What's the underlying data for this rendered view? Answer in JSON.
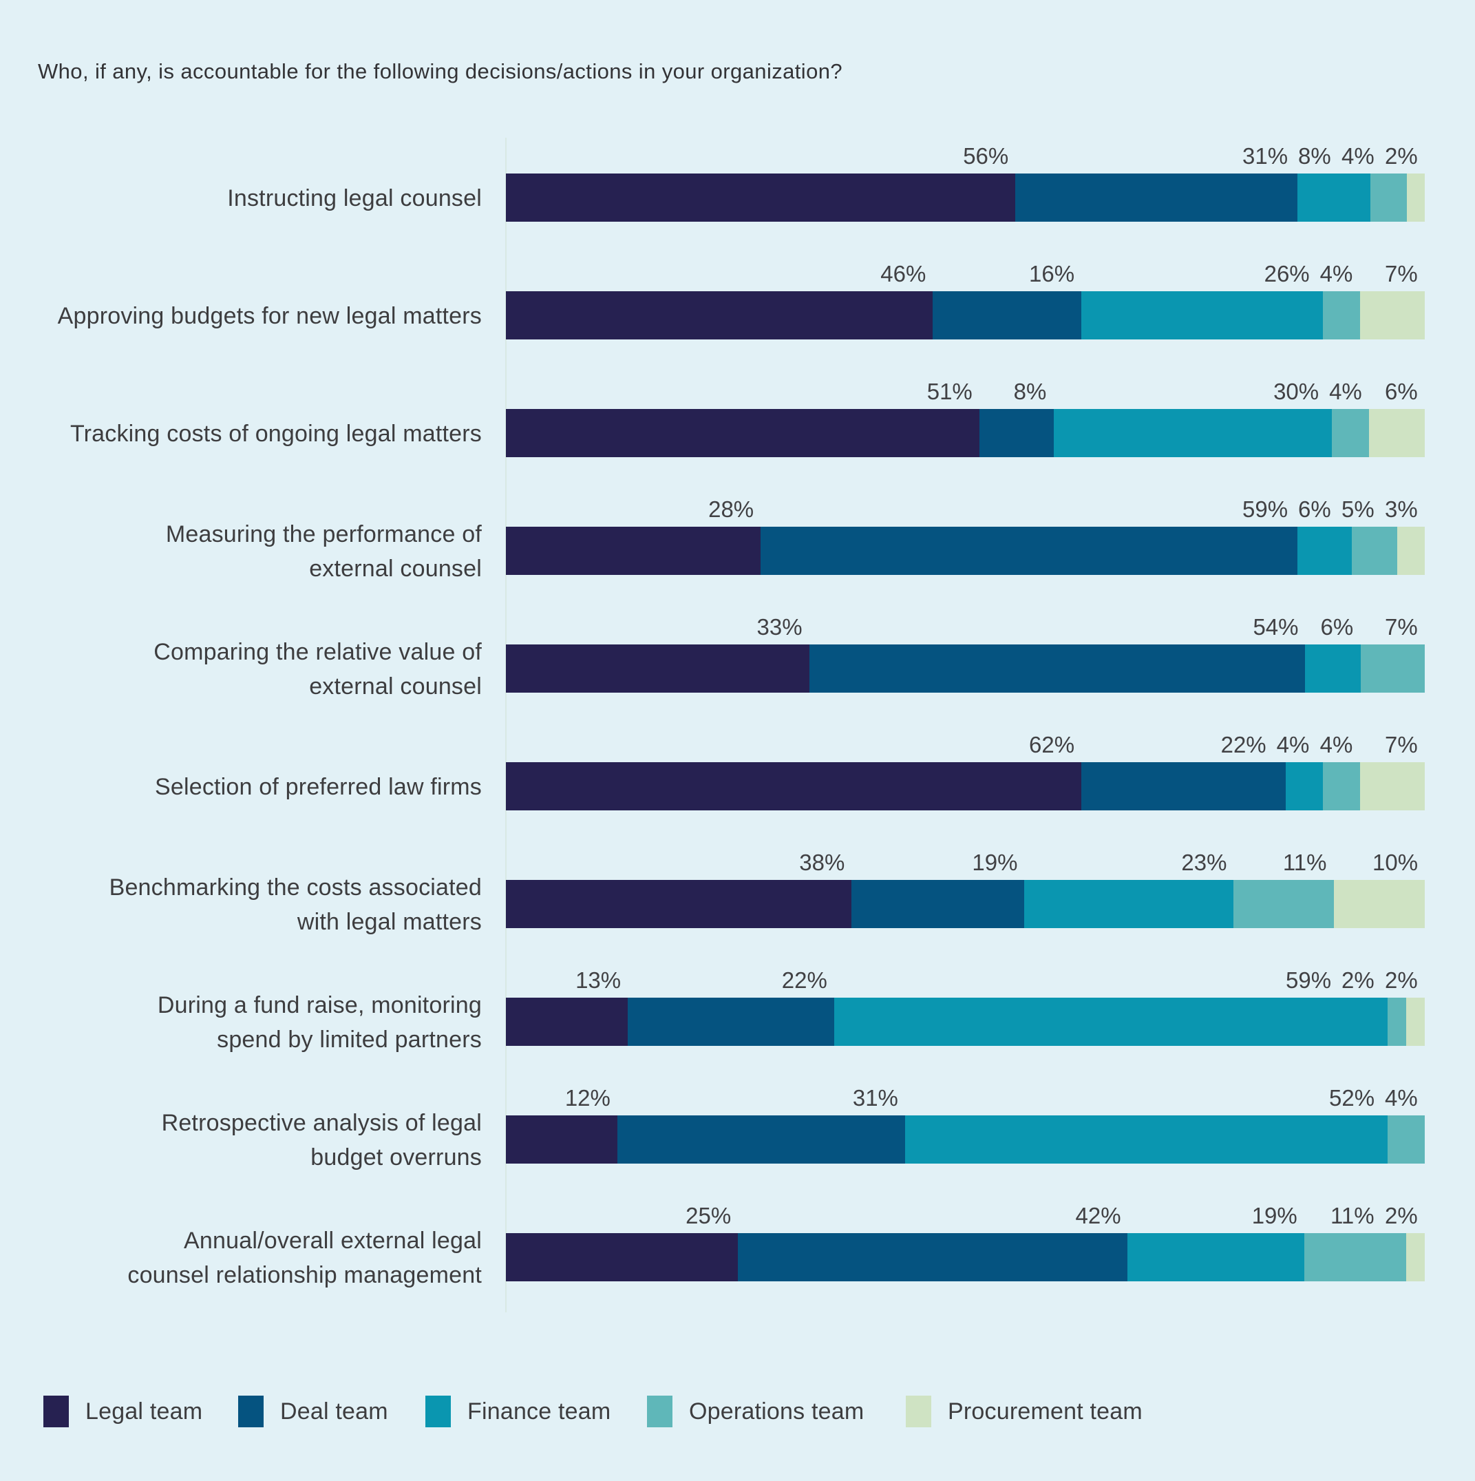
{
  "title": "Who, if any, is accountable for the following decisions/actions in your organization?",
  "chart_data": {
    "type": "bar",
    "stacked": true,
    "orientation": "horizontal",
    "unit": "%",
    "background": "#e2f1f6",
    "grid": false,
    "legend_position": "bottom-left",
    "bars_normalized_to_full_width": true,
    "value_labels": "percent shown above bar, right-aligned at end of each segment; zero-value segments omitted",
    "categories": [
      "Instructing legal counsel",
      "Approving budgets for new legal matters",
      "Tracking costs of ongoing legal matters",
      "Measuring the performance of\nexternal counsel",
      "Comparing the relative value of\nexternal counsel",
      "Selection of preferred law firms",
      "Benchmarking the costs associated\nwith legal matters",
      "During a fund raise, monitoring\nspend by limited partners",
      "Retrospective analysis of legal\nbudget overruns",
      "Annual/overall external legal\ncounsel relationship management"
    ],
    "series": [
      {
        "name": "Legal team",
        "color": "#262151",
        "values": [
          56,
          46,
          51,
          28,
          33,
          62,
          38,
          13,
          12,
          25
        ]
      },
      {
        "name": "Deal team",
        "color": "#055380",
        "values": [
          31,
          16,
          8,
          59,
          54,
          22,
          19,
          22,
          31,
          42
        ]
      },
      {
        "name": "Finance team",
        "color": "#0a96b0",
        "values": [
          8,
          26,
          30,
          6,
          6,
          4,
          23,
          59,
          52,
          19
        ]
      },
      {
        "name": "Operations team",
        "color": "#5fb7b9",
        "values": [
          4,
          4,
          4,
          5,
          7,
          4,
          11,
          2,
          4,
          11
        ]
      },
      {
        "name": "Procurement team",
        "color": "#cfe3c3",
        "values": [
          2,
          7,
          6,
          3,
          0,
          7,
          10,
          2,
          0,
          2
        ]
      }
    ]
  },
  "legend": {
    "items": [
      "Legal team",
      "Deal team",
      "Finance team",
      "Operations team",
      "Procurement team"
    ]
  }
}
